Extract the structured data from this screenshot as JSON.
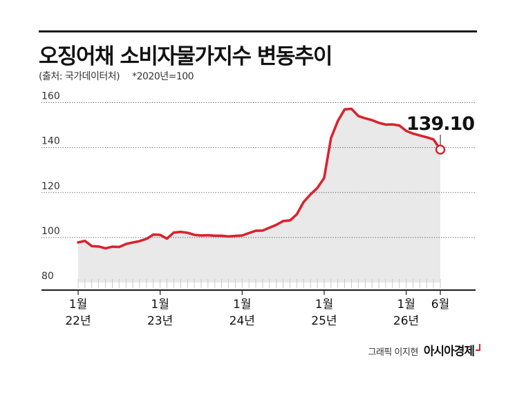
{
  "header": {
    "title": "오징어채 소비자물가지수 변동추이",
    "source": "(출처: 국가데이터처)",
    "base_note": "*2020년=100"
  },
  "footer": {
    "author": "그래픽 이지현",
    "brand": "아시아경제"
  },
  "colors": {
    "line": "#d9232e",
    "area": "#e9e9e9",
    "grid": "#555555",
    "text": "#111111"
  },
  "chart_data": {
    "type": "area",
    "title": "오징어채 소비자물가지수 변동추이",
    "ylim": [
      80,
      162
    ],
    "y_ticks": [
      "160",
      "140",
      "120",
      "100",
      "80"
    ],
    "x_ticks": [
      {
        "month": "1월",
        "year": "22년"
      },
      {
        "month": "1월",
        "year": "23년"
      },
      {
        "month": "1월",
        "year": "24년"
      },
      {
        "month": "1월",
        "year": "25년"
      },
      {
        "month": "1월",
        "year": "26년"
      },
      {
        "month": "6월",
        "year": ""
      }
    ],
    "x_start": "2022-01",
    "x_end": "2026-06",
    "annotation": "139.10",
    "series": [
      {
        "values": [
          97.8,
          98.5,
          96.2,
          96.0,
          95.2,
          95.9,
          95.8,
          97.1,
          97.8,
          98.4,
          99.4,
          101.3,
          101.2,
          99.5,
          102.2,
          102.5,
          102.1,
          101.2,
          100.9,
          101.0,
          100.8,
          100.8,
          100.5,
          100.7,
          100.9,
          102.0,
          103.0,
          103.1,
          104.4,
          105.6,
          107.3,
          107.6,
          110.3,
          115.8,
          119.2,
          122.0,
          126.5,
          144.2,
          151.8,
          157.0,
          157.2,
          154.0,
          153.0,
          152.2,
          151.0,
          150.2,
          150.3,
          149.8,
          147.4,
          146.2,
          145.4,
          144.6,
          143.6,
          139.1
        ]
      }
    ]
  }
}
